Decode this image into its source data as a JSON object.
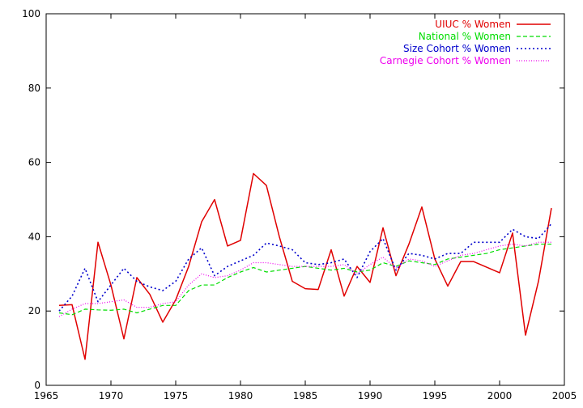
{
  "chart_data": {
    "type": "line",
    "title": "",
    "xlabel": "",
    "ylabel": "",
    "xlim": [
      1965,
      2005
    ],
    "ylim": [
      0,
      100
    ],
    "xticks": [
      1965,
      1970,
      1975,
      1980,
      1985,
      1990,
      1995,
      2000,
      2005
    ],
    "yticks": [
      0,
      20,
      40,
      60,
      80,
      100
    ],
    "grid": false,
    "legend_position": "top-right",
    "series": [
      {
        "name": "UIUC % Women",
        "color": "#e00000",
        "dash": "solid",
        "x": [
          1966,
          1967,
          1968,
          1969,
          1970,
          1971,
          1972,
          1973,
          1974,
          1975,
          1976,
          1977,
          1978,
          1979,
          1980,
          1981,
          1982,
          1983,
          1984,
          1985,
          1986,
          1987,
          1988,
          1989,
          1990,
          1991,
          1992,
          1993,
          1994,
          1995,
          1996,
          1997,
          1998,
          2000,
          2001,
          2002,
          2003,
          2004
        ],
        "y": [
          21.5,
          21.7,
          7.0,
          38.5,
          27.0,
          12.5,
          29.0,
          24.5,
          17.0,
          23.0,
          32.0,
          44.0,
          50.0,
          37.5,
          39.0,
          57.0,
          53.8,
          40.0,
          28.0,
          26.0,
          25.8,
          36.5,
          24.0,
          32.0,
          27.7,
          42.4,
          29.5,
          38.0,
          48.0,
          34.0,
          26.7,
          33.3,
          33.3,
          30.3,
          41.0,
          13.5,
          28.0,
          47.7
        ]
      },
      {
        "name": "National % Women",
        "color": "#00dd00",
        "dash": "dashed",
        "x": [
          1966,
          1967,
          1968,
          1969,
          1970,
          1971,
          1972,
          1973,
          1974,
          1975,
          1976,
          1977,
          1978,
          1979,
          1980,
          1981,
          1982,
          1983,
          1984,
          1985,
          1986,
          1987,
          1988,
          1989,
          1990,
          1991,
          1992,
          1993,
          1994,
          1995,
          1996,
          1997,
          1998,
          1999,
          2000,
          2001,
          2002,
          2003,
          2004
        ],
        "y": [
          19.5,
          19.0,
          20.5,
          20.3,
          20.2,
          20.5,
          19.5,
          20.5,
          21.5,
          21.5,
          25.5,
          27.0,
          27.0,
          29.0,
          30.5,
          31.7,
          30.5,
          31.0,
          31.5,
          32.0,
          31.5,
          31.0,
          31.5,
          30.5,
          31.0,
          33.0,
          32.0,
          33.5,
          33.0,
          32.5,
          34.0,
          34.5,
          35.0,
          35.5,
          36.5,
          37.0,
          37.5,
          38.0,
          38.0
        ]
      },
      {
        "name": "Size Cohort % Women",
        "color": "#0000cc",
        "dash": "dotted",
        "x": [
          1966,
          1967,
          1968,
          1969,
          1970,
          1971,
          1972,
          1973,
          1974,
          1975,
          1976,
          1977,
          1978,
          1979,
          1980,
          1981,
          1982,
          1983,
          1984,
          1985,
          1986,
          1987,
          1988,
          1989,
          1990,
          1991,
          1992,
          1993,
          1994,
          1995,
          1996,
          1997,
          1998,
          1999,
          2000,
          2001,
          2002,
          2003,
          2004
        ],
        "y": [
          20.0,
          24.0,
          31.5,
          22.5,
          27.0,
          31.5,
          28.0,
          26.5,
          25.5,
          28.0,
          34.0,
          37.0,
          29.5,
          32.0,
          33.5,
          35.0,
          38.3,
          37.5,
          36.5,
          33.0,
          32.5,
          33.0,
          34.0,
          29.0,
          36.0,
          39.5,
          31.0,
          35.5,
          35.0,
          34.0,
          35.5,
          35.5,
          38.5,
          38.5,
          38.5,
          42.0,
          40.0,
          39.5,
          43.5
        ]
      },
      {
        "name": "Carnegie Cohort % Women",
        "color": "#ee00ee",
        "dash": "dense-dotted",
        "x": [
          1966,
          1967,
          1968,
          1969,
          1970,
          1971,
          1972,
          1973,
          1974,
          1975,
          1976,
          1977,
          1978,
          1979,
          1980,
          1981,
          1982,
          1983,
          1984,
          1985,
          1986,
          1987,
          1988,
          1989,
          1990,
          1991,
          1992,
          1993,
          1994,
          1995,
          1996,
          1997,
          1998,
          1999,
          2000,
          2001,
          2002,
          2003,
          2004
        ],
        "y": [
          18.5,
          20.5,
          22.0,
          22.0,
          22.5,
          23.0,
          21.0,
          21.0,
          22.0,
          22.5,
          27.0,
          30.0,
          29.0,
          29.5,
          31.0,
          33.0,
          33.0,
          32.5,
          32.0,
          32.0,
          32.0,
          32.0,
          32.5,
          30.0,
          32.5,
          34.5,
          31.5,
          34.0,
          33.5,
          32.0,
          33.5,
          35.0,
          35.5,
          36.5,
          37.5,
          38.0,
          37.5,
          38.5,
          38.5
        ]
      }
    ]
  }
}
